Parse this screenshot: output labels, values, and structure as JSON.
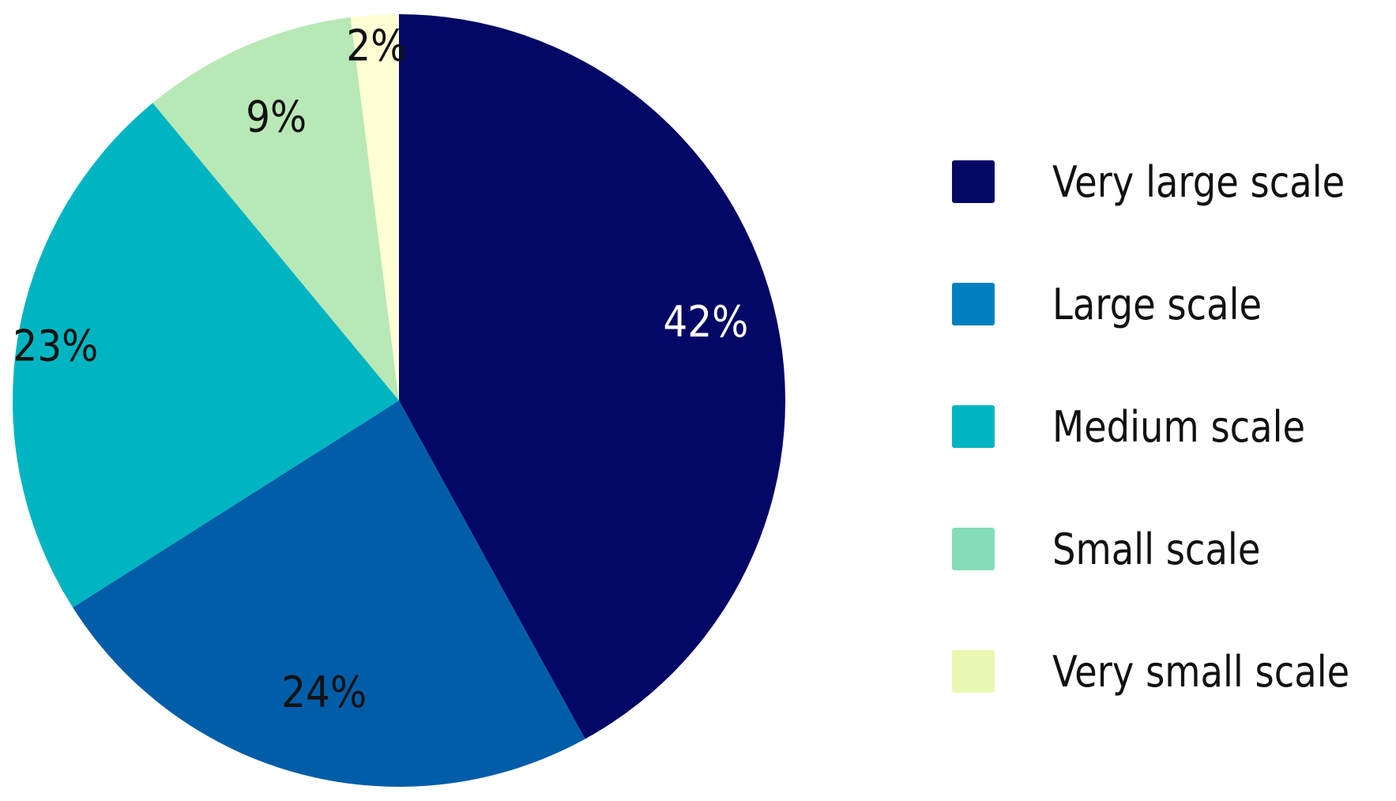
{
  "chart_data": {
    "type": "pie",
    "categories": [
      "Very large scale",
      "Large scale",
      "Medium scale",
      "Small scale",
      "Very small scale"
    ],
    "values": [
      42,
      24,
      23,
      9,
      2
    ],
    "data_labels": [
      "42%",
      "24%",
      "23%",
      "9%",
      "2%"
    ],
    "colors": [
      "#030765",
      "#025da9",
      "#00b5c1",
      "#b8e8b6",
      "#ffffd6"
    ],
    "label_colors": [
      "#ffffff",
      "#111111",
      "#111111",
      "#111111",
      "#111111"
    ],
    "legend_colors": [
      "#030765",
      "#0080c0",
      "#00b5c1",
      "#84ddb8",
      "#e9f8b2"
    ],
    "start": "12 o'clock",
    "direction": "clockwise",
    "legend_position": "right"
  }
}
